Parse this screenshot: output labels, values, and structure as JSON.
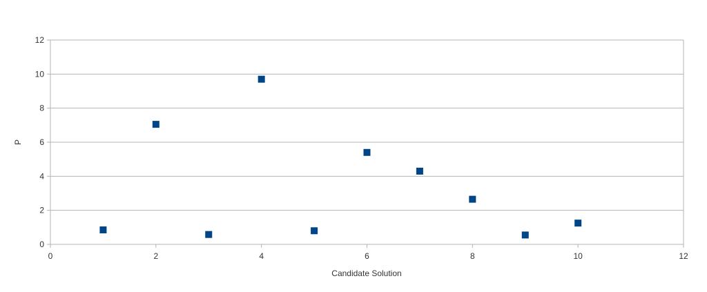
{
  "chart_data": {
    "type": "scatter",
    "title": "",
    "xlabel": "Candidate Solution",
    "ylabel": "P",
    "xlim": [
      0,
      12
    ],
    "ylim": [
      0,
      12
    ],
    "xticks": [
      0,
      2,
      4,
      6,
      8,
      10,
      12
    ],
    "yticks": [
      0,
      2,
      4,
      6,
      8,
      10,
      12
    ],
    "grid": "horizontal",
    "legend": "none",
    "marker": "square",
    "color": "#004586",
    "series": [
      {
        "points": [
          {
            "x": 1,
            "y": 0.85
          },
          {
            "x": 2,
            "y": 7.05
          },
          {
            "x": 3,
            "y": 0.58
          },
          {
            "x": 4,
            "y": 9.7
          },
          {
            "x": 5,
            "y": 0.8
          },
          {
            "x": 6,
            "y": 5.4
          },
          {
            "x": 7,
            "y": 4.3
          },
          {
            "x": 8,
            "y": 2.65
          },
          {
            "x": 9,
            "y": 0.55
          },
          {
            "x": 10,
            "y": 1.25
          }
        ]
      }
    ]
  }
}
